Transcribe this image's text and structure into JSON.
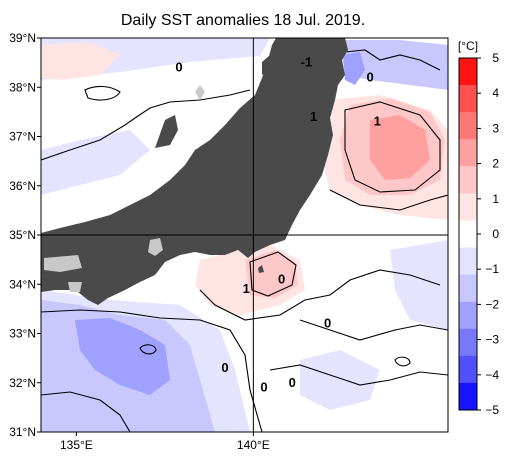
{
  "title": "Daily SST anomalies 18 Jul. 2019.",
  "axes": {
    "lat_labels": [
      {
        "lat": 39,
        "label": "39°N"
      },
      {
        "lat": 38,
        "label": "38°N"
      },
      {
        "lat": 37,
        "label": "37°N"
      },
      {
        "lat": 36,
        "label": "36°N"
      },
      {
        "lat": 35,
        "label": "35°N"
      },
      {
        "lat": 34,
        "label": "34°N"
      },
      {
        "lat": 33,
        "label": "33°N"
      },
      {
        "lat": 32,
        "label": "32°N"
      },
      {
        "lat": 31,
        "label": "31°N"
      }
    ],
    "lon_labels": [
      {
        "lon": 135,
        "label": "135°E"
      },
      {
        "lon": 140,
        "label": "140°E"
      }
    ],
    "lon_range": [
      134,
      145.5
    ],
    "lat_range": [
      31,
      39
    ],
    "grid_lines": {
      "lat": 35,
      "lon": 140
    }
  },
  "colorbar": {
    "unit_label": "[°C]",
    "ticks": [
      "5",
      "4",
      "3",
      "2",
      "1",
      "0",
      "−1",
      "−2",
      "−3",
      "−4",
      "−5"
    ],
    "colors": [
      "#ff1414",
      "#ff5050",
      "#ff7878",
      "#ffa0a0",
      "#ffc8c8",
      "#ffe4e4",
      "#ffffff",
      "#e4e4ff",
      "#c8c8ff",
      "#a0a0ff",
      "#7878ff",
      "#5050ff",
      "#1414ff"
    ]
  },
  "contour_labels": [
    {
      "text": "0",
      "lon": 137.9,
      "lat": 38.4
    },
    {
      "text": "-1",
      "lon": 141.5,
      "lat": 38.5
    },
    {
      "text": "0",
      "lon": 143.3,
      "lat": 38.2
    },
    {
      "text": "1",
      "lon": 141.7,
      "lat": 37.4
    },
    {
      "text": "1",
      "lon": 143.5,
      "lat": 37.3
    },
    {
      "text": "1",
      "lon": 139.8,
      "lat": 33.9
    },
    {
      "text": "0",
      "lon": 140.8,
      "lat": 34.1
    },
    {
      "text": "0",
      "lon": 142.1,
      "lat": 33.2
    },
    {
      "text": "0",
      "lon": 139.2,
      "lat": 32.3
    },
    {
      "text": "0",
      "lon": 140.3,
      "lat": 31.9
    },
    {
      "text": "0",
      "lon": 141.1,
      "lat": 32.0
    }
  ],
  "colors": {
    "land": "#4a4a4a",
    "lake": "#c8c8c8",
    "warm": "#ffc8c8",
    "warm_strong": "#ffa0a0",
    "cool": "#c8c8ff",
    "cool_strong": "#a0a0ff",
    "cool_faint": "#e4e4ff",
    "warm_faint": "#ffe4e4"
  }
}
